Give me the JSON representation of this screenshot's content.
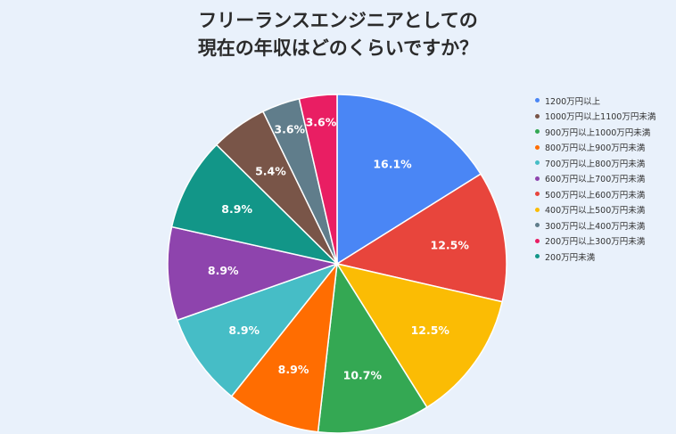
{
  "chart_data": {
    "type": "pie",
    "title_lines": [
      "フリーランスエンジニアとしての",
      "現在の年収はどのくらいですか？"
    ],
    "legend_position": "right",
    "slices": [
      {
        "label": "1200万円以上",
        "value": 16.1,
        "display": "16.1%",
        "color": "#4a86f5"
      },
      {
        "label": "500万円以上600万円未満",
        "value": 12.5,
        "display": "12.5%",
        "color": "#e8453c"
      },
      {
        "label": "400万円以上500万円未満",
        "value": 12.5,
        "display": "12.5%",
        "color": "#fbbc04"
      },
      {
        "label": "900万円以上1000万円未満",
        "value": 10.7,
        "display": "10.7%",
        "color": "#34a853"
      },
      {
        "label": "800万円以上900万円未満",
        "value": 8.9,
        "display": "8.9%",
        "color": "#ff6d01"
      },
      {
        "label": "700万円以上800万円未満",
        "value": 8.9,
        "display": "8.9%",
        "color": "#46bdc6"
      },
      {
        "label": "600万円以上700万円未満",
        "value": 8.9,
        "display": "8.9%",
        "color": "#8e44ad"
      },
      {
        "label": "200万円未満",
        "value": 8.9,
        "display": "8.9%",
        "color": "#129688"
      },
      {
        "label": "1000万円以上1100万円未満",
        "value": 5.4,
        "display": "5.4%",
        "color": "#795548"
      },
      {
        "label": "300万円以上400万円未満",
        "value": 3.6,
        "display": "3.6%",
        "color": "#607d8b"
      },
      {
        "label": "200万円以上300万円未満",
        "value": 3.6,
        "display": "3.6%",
        "color": "#e91e63"
      }
    ],
    "legend": [
      {
        "label": "1200万円以上",
        "color": "#4a86f5"
      },
      {
        "label": "1000万円以上1100万円未満",
        "color": "#795548"
      },
      {
        "label": "900万円以上1000万円未満",
        "color": "#34a853"
      },
      {
        "label": "800万円以上900万円未満",
        "color": "#ff6d01"
      },
      {
        "label": "700万円以上800万円未満",
        "color": "#46bdc6"
      },
      {
        "label": "600万円以上700万円未満",
        "color": "#8e44ad"
      },
      {
        "label": "500万円以上600万円未満",
        "color": "#e8453c"
      },
      {
        "label": "400万円以上500万円未満",
        "color": "#fbbc04"
      },
      {
        "label": "300万円以上400万円未満",
        "color": "#607d8b"
      },
      {
        "label": "200万円以上300万円未満",
        "color": "#e91e63"
      },
      {
        "label": "200万円未満",
        "color": "#129688"
      }
    ]
  }
}
